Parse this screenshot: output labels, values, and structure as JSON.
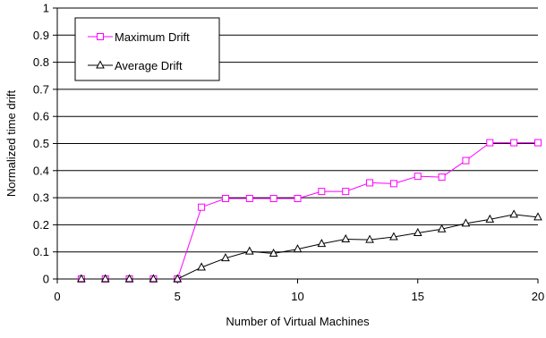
{
  "chart_data": {
    "type": "line",
    "title": "",
    "xlabel": "Number of Virtual Machines",
    "ylabel": "Normalized time drift",
    "xlim": [
      0,
      20
    ],
    "ylim": [
      0,
      1
    ],
    "xticks": [
      0,
      5,
      10,
      15,
      20
    ],
    "yticks": [
      0,
      0.1,
      0.2,
      0.3,
      0.4,
      0.5,
      0.6,
      0.7,
      0.8,
      0.9,
      1
    ],
    "grid": "horizontal",
    "legend_position": "top-left",
    "series": [
      {
        "name": "Maximum Drift",
        "color": "#ff00ff",
        "marker": "square",
        "x": [
          1,
          2,
          3,
          4,
          5,
          6,
          7,
          8,
          9,
          10,
          11,
          12,
          13,
          14,
          15,
          16,
          17,
          18,
          19,
          20
        ],
        "y": [
          0,
          0,
          0,
          0,
          0,
          0.265,
          0.297,
          0.297,
          0.297,
          0.297,
          0.323,
          0.323,
          0.355,
          0.352,
          0.379,
          0.376,
          0.437,
          0.503,
          0.503,
          0.503
        ]
      },
      {
        "name": "Average Drift",
        "color": "#000000",
        "marker": "triangle",
        "x": [
          1,
          2,
          3,
          4,
          5,
          6,
          7,
          8,
          9,
          10,
          11,
          12,
          13,
          14,
          15,
          16,
          17,
          18,
          19,
          20
        ],
        "y": [
          0,
          0,
          0,
          0,
          0,
          0.043,
          0.077,
          0.102,
          0.094,
          0.11,
          0.13,
          0.147,
          0.145,
          0.155,
          0.17,
          0.184,
          0.205,
          0.22,
          0.238,
          0.228
        ]
      }
    ]
  }
}
